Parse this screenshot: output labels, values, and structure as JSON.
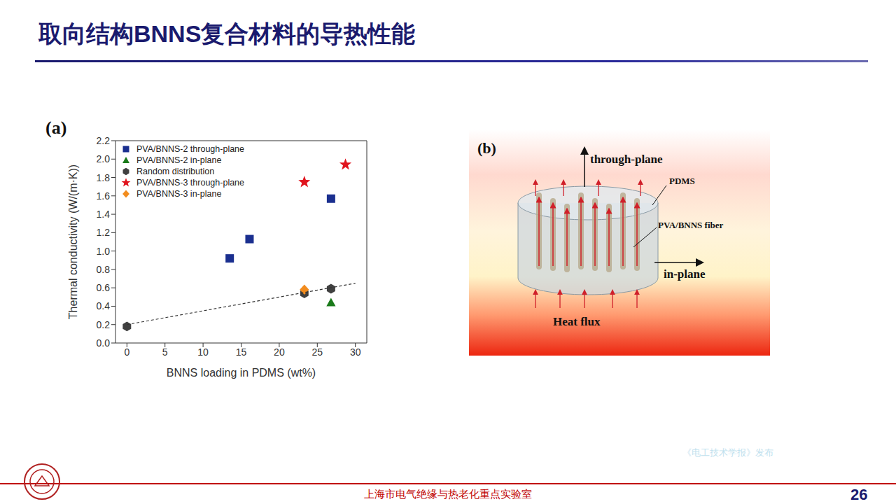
{
  "title": "取向结构BNNS复合材料的导热性能",
  "chart_data": {
    "type": "scatter",
    "panel_label": "(a)",
    "x_label": "BNNS loading in PDMS (wt%)",
    "y_label": "Thermal conductivity (W/(m·K))",
    "xlim": [
      -1.5,
      31.5
    ],
    "xticks": [
      0,
      5,
      10,
      15,
      20,
      25,
      30
    ],
    "ylim": [
      0,
      2.2
    ],
    "yticks": [
      {
        "value": 0,
        "label": "0.0"
      },
      0.2,
      0.4,
      0.6,
      0.8,
      {
        "value": 1,
        "label": "1.0"
      },
      1.2,
      1.4,
      1.6,
      1.8,
      {
        "value": 2,
        "label": "2.0"
      },
      2.2
    ],
    "legend": "upper left",
    "series": [
      {
        "name": "PVA/BNNS-2 through-plane",
        "color": "#1a2f8f",
        "marker": "square",
        "x": [
          13.5,
          16.1,
          26.8
        ],
        "values": [
          0.92,
          1.13,
          1.57
        ]
      },
      {
        "name": "PVA/BNNS-2 in-plane",
        "color": "#1a7a1a",
        "marker": "triangle",
        "x": [
          26.8
        ],
        "values": [
          0.44
        ]
      },
      {
        "name": "Random distribution",
        "color": "#404040",
        "marker": "hexagon",
        "x": [
          0,
          23.3,
          26.8
        ],
        "values": [
          0.18,
          0.54,
          0.59
        ]
      },
      {
        "name": "PVA/BNNS-3 through-plane",
        "color": "#e0141e",
        "marker": "star",
        "x": [
          23.3,
          28.7
        ],
        "values": [
          1.75,
          1.94
        ]
      },
      {
        "name": "PVA/BNNS-3 in-plane",
        "color": "#f28c1e",
        "marker": "diamond",
        "x": [
          23.3
        ],
        "values": [
          0.58
        ]
      },
      {
        "type": "line",
        "line_style": "dashed",
        "color": "#333333",
        "x": [
          0,
          30
        ],
        "values": [
          0.2,
          0.65
        ]
      }
    ]
  },
  "diagram": {
    "panel_label": "(b)",
    "labels": {
      "through_plane": "through-plane",
      "matrix": "PDMS",
      "fiber": "PVA/BNNS fiber",
      "in_plane": "in-plane",
      "heat_flux": "Heat flux"
    }
  },
  "watermark": "《电工技术学报》发布",
  "footer": {
    "text": "上海市电气绝缘与热老化重点实验室",
    "page": "26"
  }
}
